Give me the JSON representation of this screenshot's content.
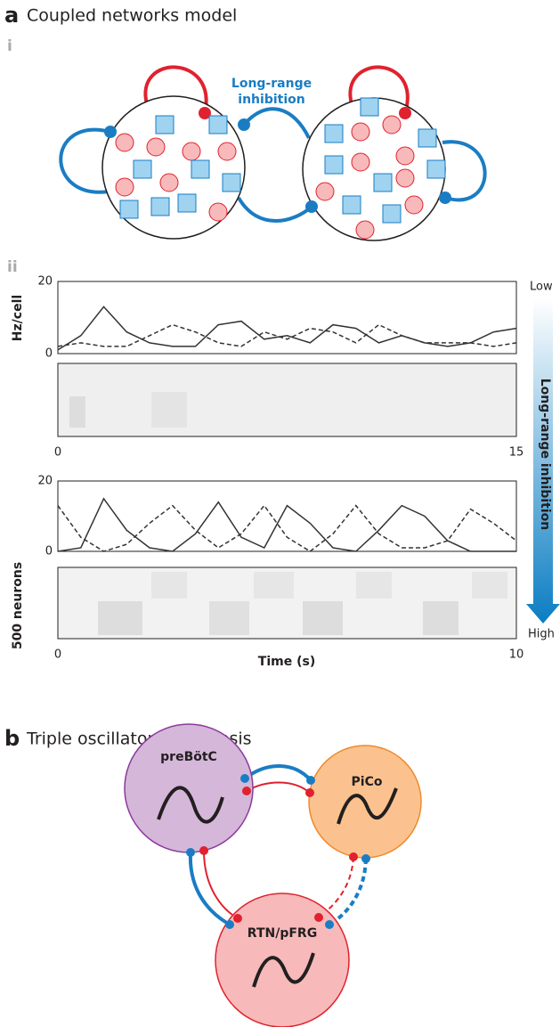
{
  "panel_a": {
    "label": "a",
    "title": "Coupled networks model",
    "sub_i": "i",
    "sub_ii": "ii",
    "annotation": [
      "Long-range",
      "inhibition"
    ],
    "y_label_top": "Hz/cell",
    "y_label_bottom": "500 neurons",
    "x_label": "Time (s)",
    "gradient_low": "Low",
    "gradient_high": "High",
    "gradient_label": "Long-range inhibition",
    "plots": [
      {
        "type": "line",
        "xlim": [
          0,
          15
        ],
        "ylim": [
          0,
          20
        ],
        "xticks": [
          0,
          15
        ],
        "yticks": [
          0,
          20
        ],
        "x": [
          0,
          0.75,
          1.5,
          2.25,
          3,
          3.75,
          4.5,
          5.25,
          6,
          6.75,
          7.5,
          8.25,
          9,
          9.75,
          10.5,
          11.25,
          12,
          12.75,
          13.5,
          14.25,
          15
        ],
        "series": [
          {
            "style": "solid",
            "color": "#333333",
            "values": [
              1,
              5,
              13,
              6,
              3,
              2,
              2,
              8,
              9,
              4,
              5,
              3,
              8,
              7,
              3,
              5,
              3,
              2,
              3,
              6,
              7
            ]
          },
          {
            "style": "dashed",
            "color": "#333333",
            "values": [
              2,
              3,
              2,
              2,
              5,
              8,
              6,
              3,
              2,
              6,
              4,
              7,
              6,
              3,
              8,
              5,
              3,
              3,
              3,
              2,
              3
            ]
          }
        ]
      },
      {
        "type": "line",
        "xlim": [
          0,
          10
        ],
        "ylim": [
          0,
          20
        ],
        "xticks": [
          0,
          10
        ],
        "yticks": [
          0,
          20
        ],
        "x": [
          0,
          0.5,
          1,
          1.5,
          2,
          2.5,
          3,
          3.5,
          4,
          4.5,
          5,
          5.5,
          6,
          6.5,
          7,
          7.5,
          8,
          8.5,
          9,
          9.5,
          10
        ],
        "series": [
          {
            "style": "solid",
            "color": "#333333",
            "values": [
              0,
              1,
              15,
              6,
              1,
              0,
              5,
              14,
              4,
              1,
              13,
              8,
              1,
              0,
              6,
              13,
              10,
              3,
              0,
              0,
              0
            ]
          },
          {
            "style": "dashed",
            "color": "#333333",
            "values": [
              13,
              4,
              0,
              2,
              8,
              13,
              6,
              1,
              5,
              13,
              4,
              0,
              5,
              13,
              5,
              1,
              1,
              3,
              12,
              8,
              3
            ]
          }
        ]
      }
    ]
  },
  "panel_b": {
    "label": "b",
    "title": "Triple oscillator hypothesis",
    "nodes": [
      "preBötC",
      "PiCo",
      "RTN/pFRG"
    ]
  }
}
